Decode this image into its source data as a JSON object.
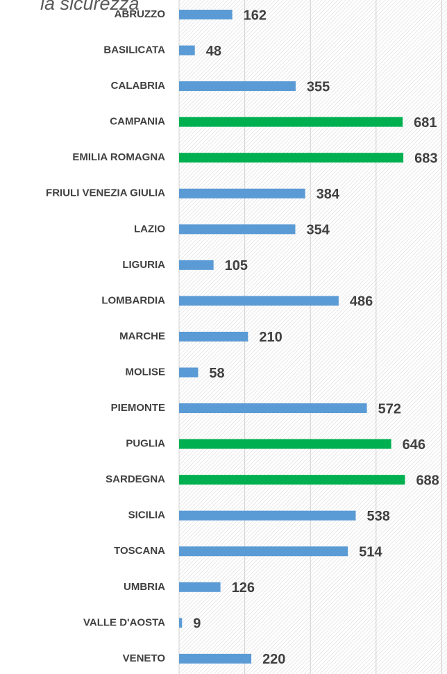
{
  "chart_data": {
    "type": "bar",
    "orientation": "horizontal",
    "title": "la sicurezza",
    "categories": [
      "ABRUZZO",
      "BASILICATA",
      "CALABRIA",
      "CAMPANIA",
      "EMILIA ROMAGNA",
      "FRIULI VENEZIA GIULIA",
      "LAZIO",
      "LIGURIA",
      "LOMBARDIA",
      "MARCHE",
      "MOLISE",
      "PIEMONTE",
      "PUGLIA",
      "SARDEGNA",
      "SICILIA",
      "TOSCANA",
      "UMBRIA",
      "VALLE D'AOSTA",
      "VENETO"
    ],
    "values": [
      162,
      48,
      355,
      681,
      683,
      384,
      354,
      105,
      486,
      210,
      58,
      572,
      646,
      688,
      538,
      514,
      126,
      9,
      220
    ],
    "colors": [
      "#5b9bd5",
      "#5b9bd5",
      "#5b9bd5",
      "#00b050",
      "#00b050",
      "#5b9bd5",
      "#5b9bd5",
      "#5b9bd5",
      "#5b9bd5",
      "#5b9bd5",
      "#5b9bd5",
      "#5b9bd5",
      "#00b050",
      "#00b050",
      "#5b9bd5",
      "#5b9bd5",
      "#5b9bd5",
      "#5b9bd5",
      "#5b9bd5"
    ],
    "xlim": [
      0,
      816
    ],
    "xticks": [
      0,
      200,
      400,
      600,
      800
    ],
    "grid": true
  }
}
